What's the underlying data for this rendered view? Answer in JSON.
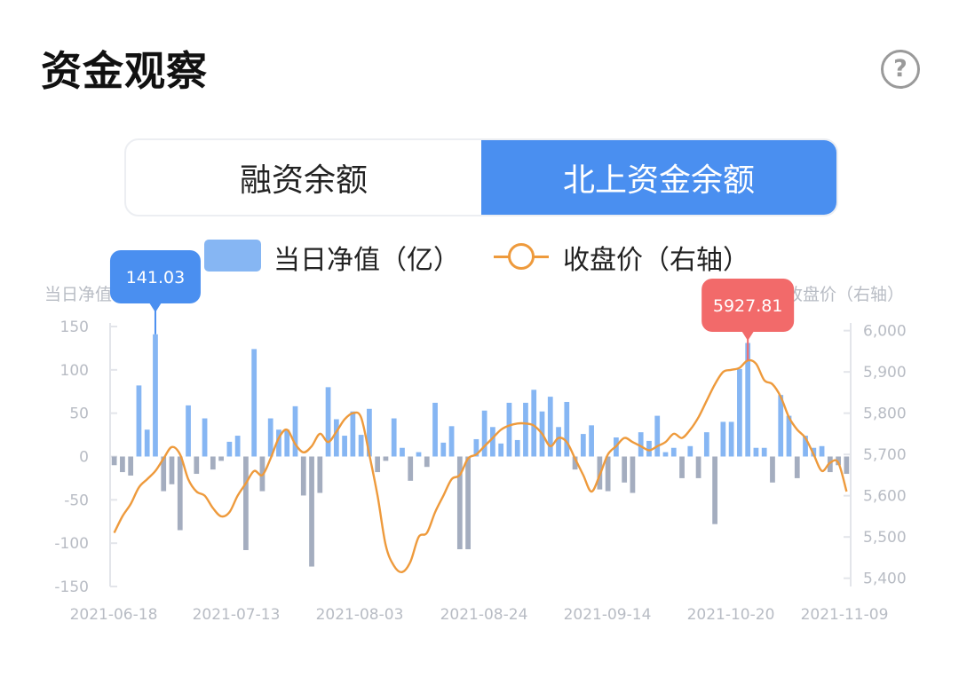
{
  "header": {
    "title": "资金观察",
    "help_icon": "?"
  },
  "tabs": [
    {
      "label": "融资余额",
      "active": false
    },
    {
      "label": "北上资金余额",
      "active": true
    }
  ],
  "legend": {
    "bar_label": "当日净值（亿）",
    "line_label": "收盘价（右轴）"
  },
  "colors": {
    "positive_bar": "#86b6f3",
    "negative_bar": "#a4adbf",
    "line": "#ee9a3c",
    "tab_active": "#4a8ff0",
    "tooltip_bar": "#4a8ff0",
    "tooltip_line": "#f26a6a"
  },
  "chart_data": {
    "type": "bar",
    "y_left_name": "当日净值",
    "y_right_name": "收盘价（右轴）",
    "y_left_ticks": [
      "150",
      "100",
      "50",
      "0",
      "-50",
      "-100",
      "-150"
    ],
    "y_right_ticks": [
      "6,000",
      "5,900",
      "5,800",
      "5,700",
      "5,600",
      "5,500",
      "5,400"
    ],
    "ylim_left": [
      -150,
      150
    ],
    "ylim_right": [
      5380,
      6010
    ],
    "x_ticks": [
      "2021-06-18",
      "2021-07-13",
      "2021-08-03",
      "2021-08-24",
      "2021-09-14",
      "2021-10-20",
      "2021-11-09"
    ],
    "series": [
      {
        "name": "当日净值（亿）",
        "type": "bar",
        "values": [
          -10,
          -18,
          -22,
          82,
          31,
          141.03,
          -40,
          -32,
          -85,
          59,
          -20,
          44,
          -15,
          -5,
          17,
          24,
          -108,
          124,
          -40,
          44,
          31,
          31,
          58,
          -45,
          -127,
          -42,
          80,
          43,
          24,
          52,
          25,
          55,
          -18,
          -5,
          44,
          10,
          -28,
          5,
          -12,
          62,
          16,
          35,
          -107,
          -107,
          20,
          53,
          34,
          15,
          62,
          19,
          62,
          77,
          52,
          69,
          34,
          63,
          -15,
          26,
          36,
          -38,
          -40,
          22,
          -30,
          -42,
          28,
          18,
          47,
          5,
          10,
          -25,
          12,
          -25,
          28,
          -78,
          40,
          40,
          101,
          131,
          10,
          10,
          -30,
          71,
          47,
          -25,
          24,
          10,
          12,
          -18,
          -10,
          -20
        ],
        "annotation": "141.03"
      },
      {
        "name": "收盘价（右轴）",
        "type": "line",
        "values": [
          5510,
          5550,
          5580,
          5620,
          5640,
          5660,
          5690,
          5718,
          5700,
          5640,
          5610,
          5600,
          5570,
          5550,
          5560,
          5600,
          5630,
          5660,
          5650,
          5690,
          5740,
          5760,
          5725,
          5705,
          5720,
          5750,
          5730,
          5755,
          5785,
          5800,
          5790,
          5700,
          5600,
          5480,
          5430,
          5415,
          5440,
          5500,
          5510,
          5560,
          5600,
          5640,
          5650,
          5690,
          5700,
          5720,
          5740,
          5760,
          5770,
          5775,
          5775,
          5770,
          5750,
          5720,
          5740,
          5730,
          5690,
          5650,
          5610,
          5650,
          5700,
          5720,
          5740,
          5730,
          5720,
          5710,
          5720,
          5730,
          5750,
          5740,
          5760,
          5790,
          5830,
          5870,
          5900,
          5905,
          5910,
          5927.81,
          5920,
          5880,
          5870,
          5840,
          5790,
          5760,
          5740,
          5700,
          5660,
          5680,
          5680,
          5610
        ],
        "annotation": "5927.81"
      }
    ],
    "grid": false,
    "legend_position": "top"
  }
}
